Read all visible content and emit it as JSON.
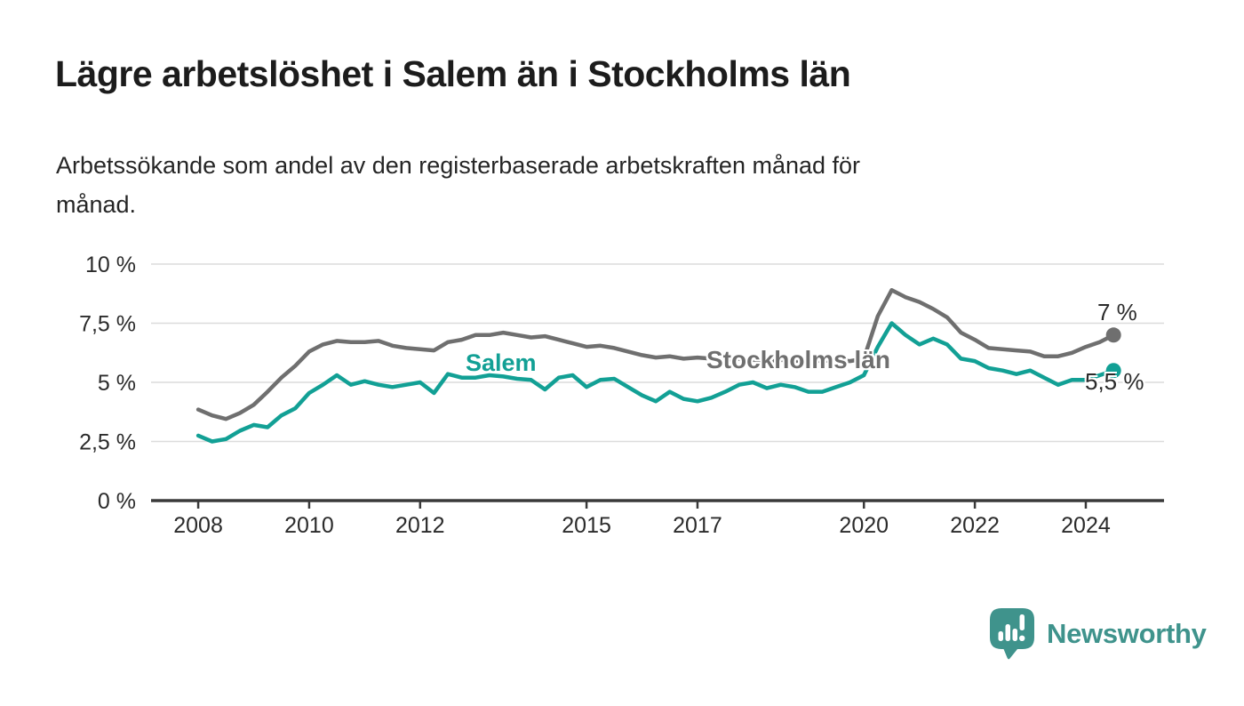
{
  "header": {
    "title": "Lägre arbetslöshet i Salem än i Stockholms län",
    "subtitle": "Arbetssökande som andel av den registerbaserade arbetskraften månad för\nmånad."
  },
  "chart_data": {
    "type": "line",
    "title": "Lägre arbetslöshet i Salem än i Stockholms län",
    "subtitle": "Arbetssökande som andel av den registerbaserade arbetskraften månad för månad.",
    "unit": "%",
    "xlabel": "",
    "ylabel": "",
    "grid": "horizontal",
    "legend_position": "inline-on-lines",
    "x_range": [
      2007.15,
      2025.41
    ],
    "y_range": [
      0,
      10
    ],
    "yticks": [
      {
        "value": 0,
        "label": "0 %"
      },
      {
        "value": 2.5,
        "label": "2,5 %"
      },
      {
        "value": 5,
        "label": "5 %"
      },
      {
        "value": 7.5,
        "label": "7,5 %"
      },
      {
        "value": 10,
        "label": "10 %"
      }
    ],
    "xticks": [
      {
        "value": 2008,
        "label": "2008"
      },
      {
        "value": 2010,
        "label": "2010"
      },
      {
        "value": 2012,
        "label": "2012"
      },
      {
        "value": 2015,
        "label": "2015"
      },
      {
        "value": 2017,
        "label": "2017"
      },
      {
        "value": 2020,
        "label": "2020"
      },
      {
        "value": 2022,
        "label": "2022"
      },
      {
        "value": 2024,
        "label": "2024"
      }
    ],
    "x": [
      2008,
      2008.25,
      2008.5,
      2008.75,
      2009,
      2009.25,
      2009.5,
      2009.75,
      2010,
      2010.25,
      2010.5,
      2010.75,
      2011,
      2011.25,
      2011.5,
      2011.75,
      2012,
      2012.25,
      2012.5,
      2012.75,
      2013,
      2013.25,
      2013.5,
      2013.75,
      2014,
      2014.25,
      2014.5,
      2014.75,
      2015,
      2015.25,
      2015.5,
      2015.75,
      2016,
      2016.25,
      2016.5,
      2016.75,
      2017,
      2017.25,
      2017.5,
      2017.75,
      2018,
      2018.25,
      2018.5,
      2018.75,
      2019,
      2019.25,
      2019.5,
      2019.75,
      2020,
      2020.25,
      2020.5,
      2020.75,
      2021,
      2021.25,
      2021.5,
      2021.75,
      2022,
      2022.25,
      2022.5,
      2022.75,
      2023,
      2023.25,
      2023.5,
      2023.75,
      2024,
      2024.25,
      2024.5
    ],
    "series": [
      {
        "name": "Salem",
        "color": "#12a095",
        "end_label": "5,5 %",
        "end_value": 5.5,
        "values": [
          2.75,
          2.5,
          2.6,
          2.95,
          3.2,
          3.1,
          3.6,
          3.9,
          4.55,
          4.9,
          5.3,
          4.9,
          5.05,
          4.9,
          4.8,
          4.9,
          5.0,
          4.55,
          5.35,
          5.2,
          5.2,
          5.3,
          5.25,
          5.15,
          5.1,
          4.7,
          5.2,
          5.3,
          4.8,
          5.1,
          5.15,
          4.8,
          4.45,
          4.2,
          4.6,
          4.3,
          4.2,
          4.35,
          4.6,
          4.9,
          5.0,
          4.75,
          4.9,
          4.8,
          4.6,
          4.6,
          4.8,
          5.0,
          5.3,
          6.5,
          7.5,
          7.0,
          6.6,
          6.85,
          6.6,
          6.0,
          5.9,
          5.6,
          5.5,
          5.35,
          5.5,
          5.2,
          4.9,
          5.1,
          5.1,
          5.3,
          5.5
        ]
      },
      {
        "name": "Stockholms län",
        "color": "#6f6f6f",
        "end_label": "7 %",
        "end_value": 7,
        "values": [
          3.85,
          3.6,
          3.45,
          3.7,
          4.05,
          4.6,
          5.2,
          5.7,
          6.3,
          6.6,
          6.75,
          6.7,
          6.7,
          6.75,
          6.55,
          6.45,
          6.4,
          6.35,
          6.7,
          6.8,
          7.0,
          7.0,
          7.1,
          7.0,
          6.9,
          6.95,
          6.8,
          6.65,
          6.5,
          6.55,
          6.45,
          6.3,
          6.15,
          6.05,
          6.1,
          6.0,
          6.05,
          6.0,
          5.95,
          6.0,
          5.95,
          5.9,
          5.95,
          5.9,
          5.95,
          5.9,
          5.95,
          5.9,
          6.0,
          7.8,
          8.9,
          8.6,
          8.4,
          8.1,
          7.75,
          7.1,
          6.8,
          6.45,
          6.4,
          6.35,
          6.3,
          6.1,
          6.1,
          6.25,
          6.5,
          6.7,
          7.0
        ]
      }
    ],
    "colors": {
      "grid": "#dcdcdc",
      "axis": "#3a3a3a",
      "tick_text": "#2b2b2b"
    }
  },
  "footer": {
    "brand": "Newsworthy",
    "brand_color": "#3f938c",
    "logo_icon": "bar-chart-speech-bubble-icon"
  }
}
